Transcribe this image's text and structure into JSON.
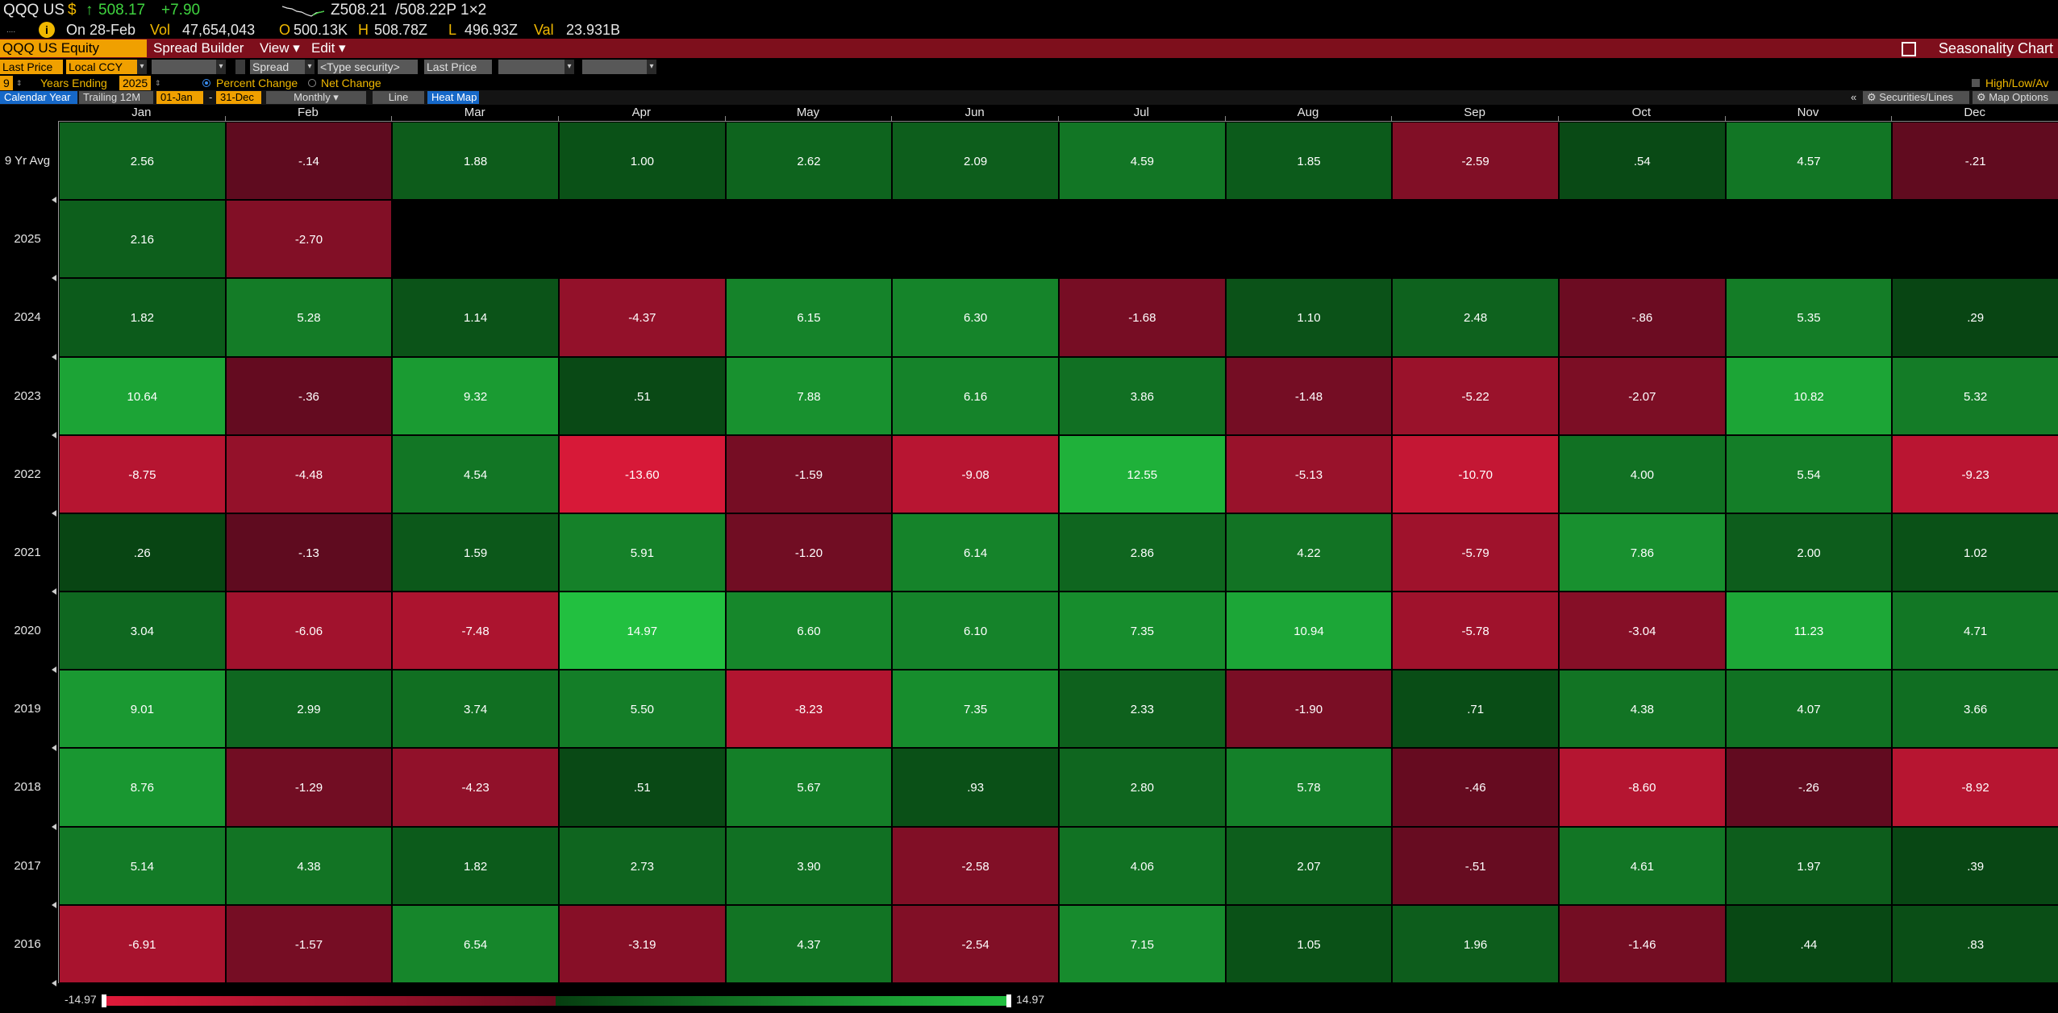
{
  "ticker": {
    "symbol": "QQQ US",
    "currency": "$",
    "arrow": "↑",
    "price": "508.17",
    "change": "+7.90",
    "bid": "Z508.21",
    "ask": "/508.22P",
    "size": "1×2"
  },
  "info": {
    "date": "On 28-Feb",
    "vol_label": "Vol",
    "vol": "47,654,043",
    "open_label": "O",
    "open": "500.13K",
    "high_label": "H",
    "high": "508.78Z",
    "low_label": "L",
    "low": "496.93Z",
    "val_label": "Val",
    "val": "23.931B"
  },
  "command": {
    "security": "QQQ US Equity",
    "menus": [
      "Spread Builder",
      "View ▾",
      "Edit ▾"
    ],
    "title": "Seasonality Chart"
  },
  "fields": {
    "field1": "Last Price",
    "field2": "Local CCY",
    "spread": "Spread",
    "type_security": "<Type security>",
    "field3": "Last Price"
  },
  "options": {
    "years": "9",
    "years_ending_label": "Years Ending",
    "year_end": "2025",
    "percent_change": "Percent Change",
    "net_change": "Net Change",
    "high_low_avg": "High/Low/Av"
  },
  "tabs": {
    "calendar_year": "Calendar Year",
    "trailing": "Trailing 12M",
    "start": "01-Jan",
    "dash": "-",
    "end": "31-Dec",
    "period": "Monthly ▾",
    "line": "Line",
    "heat_map": "Heat Map",
    "collapse": "«",
    "securities_lines": "Securities/Lines",
    "map_options": "Map Options"
  },
  "heatmap": {
    "months": [
      "Jan",
      "Feb",
      "Mar",
      "Apr",
      "May",
      "Jun",
      "Jul",
      "Aug",
      "Sep",
      "Oct",
      "Nov",
      "Dec"
    ],
    "rows": [
      {
        "label": "9 Yr Avg",
        "values": [
          "2.56",
          "-.14",
          "1.88",
          "1.00",
          "2.62",
          "2.09",
          "4.59",
          "1.85",
          "-2.59",
          ".54",
          "4.57",
          "-.21"
        ]
      },
      {
        "label": "2025",
        "values": [
          "2.16",
          "-2.70",
          null,
          null,
          null,
          null,
          null,
          null,
          null,
          null,
          null,
          null
        ]
      },
      {
        "label": "2024",
        "values": [
          "1.82",
          "5.28",
          "1.14",
          "-4.37",
          "6.15",
          "6.30",
          "-1.68",
          "1.10",
          "2.48",
          "-.86",
          "5.35",
          ".29"
        ]
      },
      {
        "label": "2023",
        "values": [
          "10.64",
          "-.36",
          "9.32",
          ".51",
          "7.88",
          "6.16",
          "3.86",
          "-1.48",
          "-5.22",
          "-2.07",
          "10.82",
          "5.32"
        ]
      },
      {
        "label": "2022",
        "values": [
          "-8.75",
          "-4.48",
          "4.54",
          "-13.60",
          "-1.59",
          "-9.08",
          "12.55",
          "-5.13",
          "-10.70",
          "4.00",
          "5.54",
          "-9.23"
        ]
      },
      {
        "label": "2021",
        "values": [
          ".26",
          "-.13",
          "1.59",
          "5.91",
          "-1.20",
          "6.14",
          "2.86",
          "4.22",
          "-5.79",
          "7.86",
          "2.00",
          "1.02"
        ]
      },
      {
        "label": "2020",
        "values": [
          "3.04",
          "-6.06",
          "-7.48",
          "14.97",
          "6.60",
          "6.10",
          "7.35",
          "10.94",
          "-5.78",
          "-3.04",
          "11.23",
          "4.71"
        ]
      },
      {
        "label": "2019",
        "values": [
          "9.01",
          "2.99",
          "3.74",
          "5.50",
          "-8.23",
          "7.35",
          "2.33",
          "-1.90",
          ".71",
          "4.38",
          "4.07",
          "3.66"
        ]
      },
      {
        "label": "2018",
        "values": [
          "8.76",
          "-1.29",
          "-4.23",
          ".51",
          "5.67",
          ".93",
          "2.80",
          "5.78",
          "-.46",
          "-8.60",
          "-.26",
          "-8.92"
        ]
      },
      {
        "label": "2017",
        "values": [
          "5.14",
          "4.38",
          "1.82",
          "2.73",
          "3.90",
          "-2.58",
          "4.06",
          "2.07",
          "-.51",
          "4.61",
          "1.97",
          ".39"
        ]
      },
      {
        "label": "2016",
        "values": [
          "-6.91",
          "-1.57",
          "6.54",
          "-3.19",
          "4.37",
          "-2.54",
          "7.15",
          "1.05",
          "1.96",
          "-1.46",
          ".44",
          ".83"
        ]
      }
    ]
  },
  "scale": {
    "min": "-14.97",
    "max": "14.97",
    "min_value": -14.97,
    "max_value": 14.97
  },
  "colors": {
    "negative_max": "#e01a3a",
    "negative_min": "#5a0a1e",
    "positive_min": "#063d10",
    "positive_max": "#22c040",
    "command_bar": "#7e0f1c",
    "accent": "#f0a000"
  }
}
